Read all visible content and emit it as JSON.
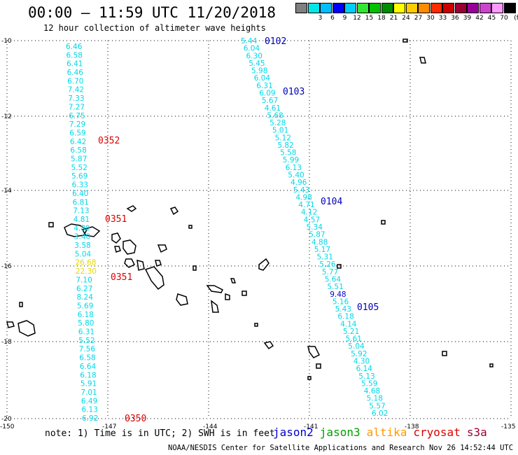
{
  "header": {
    "title": "00:00 – 11:59 UTC 11/20/2018",
    "subtitle": "12 hour collection of altimeter wave heights"
  },
  "legend": {
    "unit": "(ft)",
    "swatches": [
      {
        "label": "",
        "color": "#7f7f7f"
      },
      {
        "label": "3",
        "color": "#00e6e6"
      },
      {
        "label": "6",
        "color": "#00bfff"
      },
      {
        "label": "9",
        "color": "#0000ff"
      },
      {
        "label": "12",
        "color": "#00ccff"
      },
      {
        "label": "15",
        "color": "#33e633"
      },
      {
        "label": "18",
        "color": "#00c000"
      },
      {
        "label": "21",
        "color": "#008c00"
      },
      {
        "label": "24",
        "color": "#ffff00"
      },
      {
        "label": "27",
        "color": "#ffcc00"
      },
      {
        "label": "30",
        "color": "#ff8c00"
      },
      {
        "label": "33",
        "color": "#ff2a00"
      },
      {
        "label": "36",
        "color": "#cc0000"
      },
      {
        "label": "39",
        "color": "#990033"
      },
      {
        "label": "42",
        "color": "#990099"
      },
      {
        "label": "45",
        "color": "#cc44cc"
      },
      {
        "label": "70",
        "color": "#ff99ff"
      },
      {
        "label": "",
        "color": "#000000"
      }
    ]
  },
  "axes": {
    "lat_labels": [
      "-10",
      "-12",
      "-14",
      "-16",
      "-18",
      "-20"
    ],
    "lon_labels": [
      "-150",
      "-147",
      "-144",
      "-141",
      "-138",
      "-135"
    ]
  },
  "colors": {
    "cyan": "#00d8e8",
    "dark_blue": "#0000cc",
    "yellow": "#e8d800",
    "red": "#dd0000",
    "label_blue": "#0000bb"
  },
  "tracks": {
    "west": {
      "values": [
        "6.46",
        "6.58",
        "6.41",
        "6.46",
        "6.70",
        "7.42",
        "7.33",
        "7.27",
        "6.75",
        "7.29",
        "6.59",
        "6.42",
        "6.58",
        "5.87",
        "5.52",
        "5.69",
        "6.33",
        "6.40",
        "6.81",
        "7.13",
        "4.81",
        "4.80",
        "3.40",
        "3.58",
        "5.04",
        "26.68",
        "22.30",
        "7.10",
        "6.27",
        "8.24",
        "5.69",
        "6.18",
        "5.80",
        "6.31",
        "5.52",
        "7.56",
        "6.58",
        "6.64",
        "6.18",
        "5.91",
        "7.01",
        "6.49",
        "6.13",
        "6.92"
      ],
      "yellow": [
        25,
        26
      ]
    },
    "east": {
      "values": [
        "5.44",
        "6.04",
        "6.30",
        "5.45",
        "5.98",
        "6.04",
        "6.31",
        "6.09",
        "5.67",
        "4.61",
        "5.68",
        "5.28",
        "5.01",
        "5.12",
        "5.82",
        "5.58",
        "5.99",
        "6.13",
        "5.40",
        "4.96",
        "5.43",
        "4.98",
        "4.71",
        "4.12",
        "4.57",
        "5.34",
        "5.87",
        "4.88",
        "5.17",
        "5.31",
        "5.26",
        "5.77",
        "5.64",
        "5.51",
        "9.48",
        "5.16",
        "5.43",
        "6.18",
        "4.14",
        "5.21",
        "5.61",
        "5.04",
        "5.92",
        "4.30",
        "6.14",
        "5.13",
        "5.59",
        "4.68",
        "5.18",
        "5.57",
        "6.02"
      ],
      "dark": [
        34
      ]
    }
  },
  "pass_labels": [
    {
      "text": "0102",
      "color": "blue"
    },
    {
      "text": "0103",
      "color": "blue"
    },
    {
      "text": "0104",
      "color": "blue"
    },
    {
      "text": "0105",
      "color": "blue"
    },
    {
      "text": "0352",
      "color": "red"
    },
    {
      "text": "0351",
      "color": "red"
    },
    {
      "text": "0351",
      "color": "red"
    },
    {
      "text": "0350",
      "color": "red"
    }
  ],
  "footer": {
    "note": "note: 1) Time is in UTC; 2) SWH is in feet",
    "missions": [
      {
        "name": "jason2",
        "color": "#0000cc"
      },
      {
        "name": "jason3",
        "color": "#00a000"
      },
      {
        "name": "altika",
        "color": "#ff9900"
      },
      {
        "name": "cryosat",
        "color": "#dd0000"
      },
      {
        "name": "s3a",
        "color": "#990033"
      }
    ],
    "credit": "NOAA/NESDIS Center for Satellite Applications and Research   Nov 26 14:52:44 UTC 2018"
  }
}
